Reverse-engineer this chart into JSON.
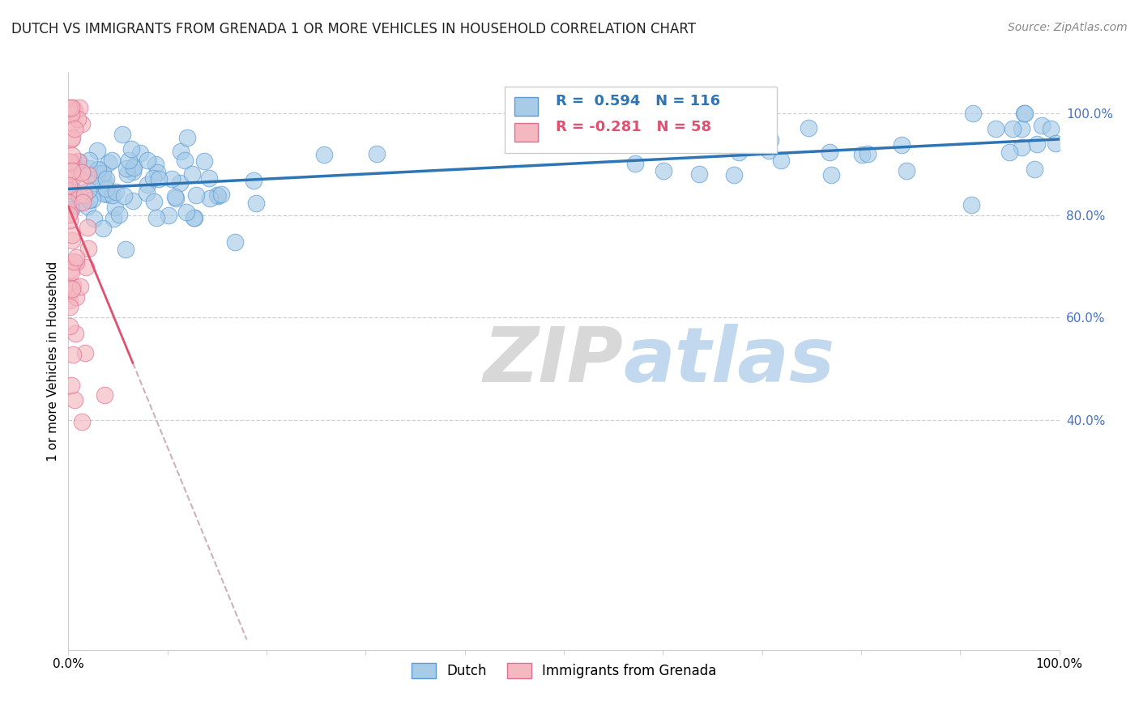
{
  "title": "DUTCH VS IMMIGRANTS FROM GRENADA 1 OR MORE VEHICLES IN HOUSEHOLD CORRELATION CHART",
  "source": "Source: ZipAtlas.com",
  "ylabel": "1 or more Vehicles in Household",
  "xlim": [
    0.0,
    1.0
  ],
  "ylim": [
    -0.05,
    1.08
  ],
  "xticks": [
    0.0,
    0.1,
    0.2,
    0.3,
    0.4,
    0.5,
    0.6,
    0.7,
    0.8,
    0.9,
    1.0
  ],
  "xtick_labels": [
    "0.0%",
    "",
    "",
    "",
    "",
    "",
    "",
    "",
    "",
    "",
    "100.0%"
  ],
  "ytick_right_labels": [
    "40.0%",
    "60.0%",
    "80.0%",
    "100.0%"
  ],
  "ytick_right_values": [
    0.4,
    0.6,
    0.8,
    1.0
  ],
  "blue_color": "#a8cce8",
  "blue_edge_color": "#5b9bd5",
  "blue_line_color": "#2e75b6",
  "pink_color": "#f4b8c1",
  "pink_edge_color": "#e07090",
  "pink_line_color": "#e05070",
  "pink_dash_color": "#d0b0b8",
  "right_label_color": "#4472c4",
  "R_blue": 0.594,
  "N_blue": 116,
  "R_pink": -0.281,
  "N_pink": 58,
  "legend_label_blue": "Dutch",
  "legend_label_pink": "Immigrants from Grenada",
  "watermark_zip": "ZIP",
  "watermark_atlas": "atlas",
  "grid_color": "#d0d0d0"
}
